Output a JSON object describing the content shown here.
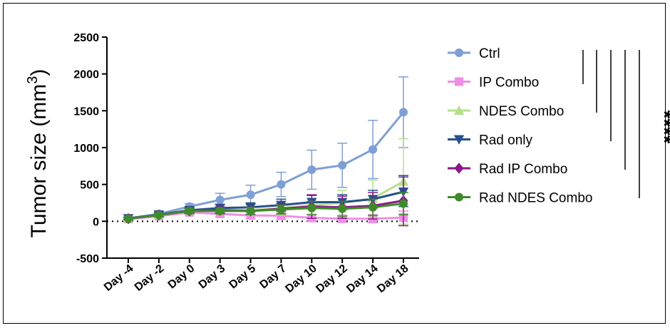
{
  "chart_data": {
    "type": "line",
    "ylabel_main": "Tumor size (mm",
    "ylabel_sup": "3",
    "ylabel_close": ")",
    "ylim": [
      -500,
      2500
    ],
    "yticks": [
      -500,
      0,
      500,
      1000,
      1500,
      2000,
      2500
    ],
    "categories": [
      "Day -4",
      "Day -2",
      "Day 0",
      "Day 3",
      "Day 5",
      "Day 7",
      "Day 10",
      "Day 12",
      "Day 14",
      "Day 18"
    ],
    "zero_line": "dotted",
    "legend_position": "right",
    "significance": "****",
    "series": [
      {
        "name": "Ctrl",
        "color": "#7f9fd4",
        "marker": "circle",
        "values": [
          40,
          100,
          200,
          290,
          360,
          500,
          700,
          760,
          975,
          1480
        ],
        "errors": [
          20,
          30,
          40,
          90,
          130,
          165,
          265,
          300,
          395,
          480
        ]
      },
      {
        "name": "IP Combo",
        "color": "#ef8de8",
        "marker": "square",
        "values": [
          30,
          70,
          120,
          100,
          80,
          75,
          45,
          35,
          35,
          50
        ],
        "errors": [
          10,
          20,
          30,
          40,
          40,
          45,
          50,
          50,
          55,
          90
        ]
      },
      {
        "name": "NDES Combo",
        "color": "#b6e08c",
        "marker": "triangle-up",
        "values": [
          40,
          90,
          150,
          160,
          150,
          180,
          220,
          250,
          310,
          540
        ],
        "errors": [
          15,
          25,
          40,
          60,
          70,
          90,
          130,
          170,
          250,
          580
        ]
      },
      {
        "name": "Rad only",
        "color": "#27508c",
        "marker": "triangle-down",
        "values": [
          40,
          90,
          150,
          180,
          190,
          220,
          260,
          260,
          300,
          400
        ],
        "errors": [
          15,
          25,
          35,
          50,
          60,
          80,
          90,
          100,
          120,
          200
        ]
      },
      {
        "name": "Rad IP Combo",
        "color": "#8a1a8a",
        "marker": "diamond",
        "values": [
          35,
          85,
          140,
          150,
          140,
          170,
          200,
          190,
          210,
          280
        ],
        "errors": [
          15,
          25,
          35,
          40,
          50,
          70,
          160,
          150,
          180,
          340
        ]
      },
      {
        "name": "Rad NDES Combo",
        "color": "#3f8b2a",
        "marker": "circle",
        "values": [
          35,
          85,
          140,
          140,
          140,
          160,
          180,
          170,
          190,
          240
        ],
        "errors": [
          15,
          25,
          35,
          40,
          50,
          60,
          90,
          100,
          110,
          150
        ]
      }
    ]
  }
}
